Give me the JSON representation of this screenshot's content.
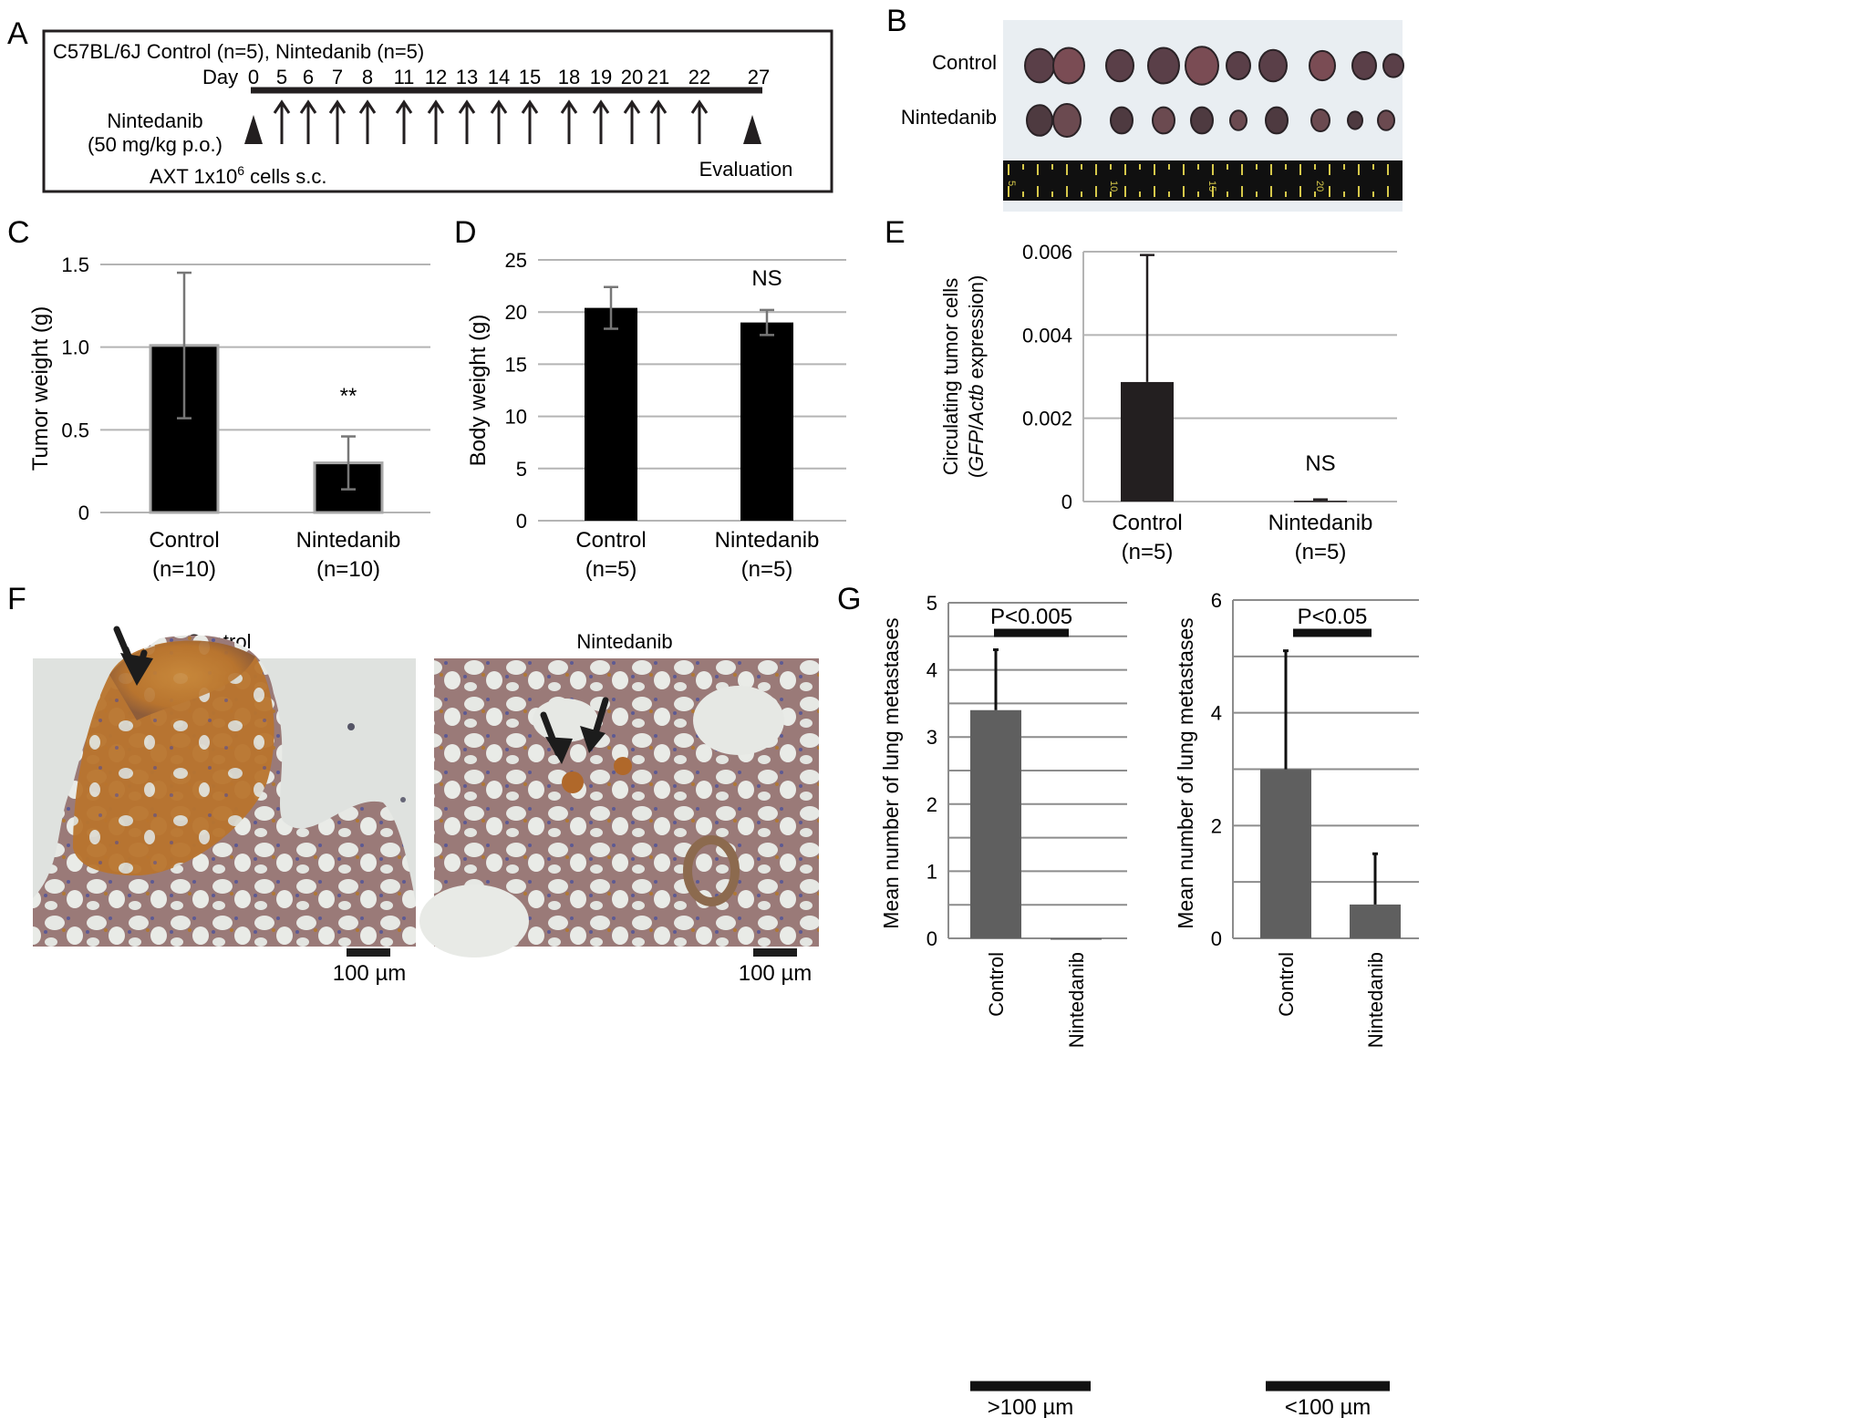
{
  "panel_labels": {
    "A": "A",
    "B": "B",
    "C": "C",
    "D": "D",
    "E": "E",
    "F": "F",
    "G": "G"
  },
  "schedule": {
    "header": "C57BL/6J  Control (n=5), Nintedanib (n=5)",
    "day_label": "Day",
    "days": [
      "0",
      "5",
      "6",
      "7",
      "8",
      "11",
      "12",
      "13",
      "14",
      "15",
      "18",
      "19",
      "20",
      "21",
      "22",
      "27"
    ],
    "dosed_days": [
      "5",
      "6",
      "7",
      "8",
      "11",
      "12",
      "13",
      "14",
      "15",
      "18",
      "19",
      "20",
      "21",
      "22"
    ],
    "drug_line1": "Nintedanib",
    "drug_line2": "(50 mg/kg p.o.)",
    "cells_prefix": "AXT 1x10",
    "cells_exp": "6",
    "cells_suffix": " cells s.c.",
    "evaluation": "Evaluation"
  },
  "photo_B": {
    "row1": "Control",
    "row2": "Nintedanib",
    "ruler_marks": [
      "5",
      "10",
      "15",
      "20"
    ],
    "colors": {
      "background": "#e9eef2",
      "tissue": "#5a3f48",
      "ruler": "#101010",
      "ruler_mark": "#d6c84a"
    }
  },
  "histology_F": {
    "left_title": "Control",
    "right_title": "Nintedanib",
    "scale_label_left": "100 µm",
    "scale_label_right": "100 µm",
    "colors": {
      "background": "#dfe2df",
      "stain": "#b9762c",
      "nuclei": "#6d6aa0",
      "arrow": "#1c1c1c"
    }
  },
  "chart_data": [
    {
      "panel": "C",
      "type": "bar",
      "categories": [
        "Control",
        "Nintedanib"
      ],
      "category_sublabels": [
        "(n=10)",
        "(n=10)"
      ],
      "values": [
        1.01,
        0.3
      ],
      "errors": [
        0.44,
        0.16
      ],
      "ylabel": "Tumor weight (g)",
      "ylim": [
        0,
        1.5
      ],
      "yticks": [
        0,
        0.5,
        1.0,
        1.5
      ],
      "ytick_labels": [
        "0",
        "0.5",
        "1.0",
        "1.5"
      ],
      "annotations": [
        "",
        "**"
      ],
      "grid": true,
      "bar_color": "#000000"
    },
    {
      "panel": "D",
      "type": "bar",
      "categories": [
        "Control",
        "Nintedanib"
      ],
      "category_sublabels": [
        "(n=5)",
        "(n=5)"
      ],
      "values": [
        20.4,
        19.0
      ],
      "errors": [
        2.0,
        1.2
      ],
      "ylabel": "Body weight (g)",
      "ylim": [
        0,
        25
      ],
      "yticks": [
        0,
        5,
        10,
        15,
        20,
        25
      ],
      "ytick_labels": [
        "0",
        "5",
        "10",
        "15",
        "20",
        "25"
      ],
      "annotations": [
        "",
        "NS"
      ],
      "grid": true,
      "bar_color": "#000000"
    },
    {
      "panel": "E",
      "type": "bar",
      "categories": [
        "Control",
        "Nintedanib"
      ],
      "category_sublabels": [
        "(n=5)",
        "(n=5)"
      ],
      "values": [
        0.00287,
        2e-05
      ],
      "errors": [
        0.00305,
        3e-05
      ],
      "ylabel_line1": "Circulating tumor cells",
      "ylabel_line2_parts": [
        "(",
        "GFP",
        "/",
        "Actb",
        " expression)"
      ],
      "ylim": [
        0,
        0.006
      ],
      "yticks": [
        0,
        0.002,
        0.004,
        0.006
      ],
      "ytick_labels": [
        "0",
        "0.002",
        "0.004",
        "0.006"
      ],
      "annotations": [
        "",
        "NS"
      ],
      "grid": true,
      "bar_color": "#231f20"
    },
    {
      "panel": "G-left",
      "type": "bar",
      "categories": [
        "Control",
        "Nintedanib"
      ],
      "values": [
        3.4,
        0.0
      ],
      "errors": [
        0.9,
        0.0
      ],
      "ylabel": "Mean number of lung metastases",
      "ylim": [
        0,
        5
      ],
      "yticks": [
        0,
        1,
        2,
        3,
        4,
        5
      ],
      "ytick_labels": [
        "0",
        "1",
        "2",
        "3",
        "4",
        "5"
      ],
      "gridlines": [
        0,
        0.5,
        1,
        1.5,
        2,
        2.5,
        3,
        3.5,
        4,
        4.5,
        5
      ],
      "significance": "P<0.005",
      "group_label": ">100 µm",
      "bar_color": "#5f5f5f"
    },
    {
      "panel": "G-right",
      "type": "bar",
      "categories": [
        "Control",
        "Nintedanib"
      ],
      "values": [
        3.0,
        0.6
      ],
      "errors": [
        2.1,
        0.9
      ],
      "ylabel": "Mean number of lung metastases",
      "ylim": [
        0,
        6
      ],
      "yticks": [
        0,
        2,
        4,
        6
      ],
      "ytick_labels": [
        "0",
        "2",
        "4",
        "6"
      ],
      "gridlines": [
        0,
        1,
        2,
        3,
        4,
        5,
        6
      ],
      "significance": "P<0.05",
      "group_label": "<100 µm",
      "bar_color": "#5f5f5f"
    }
  ]
}
